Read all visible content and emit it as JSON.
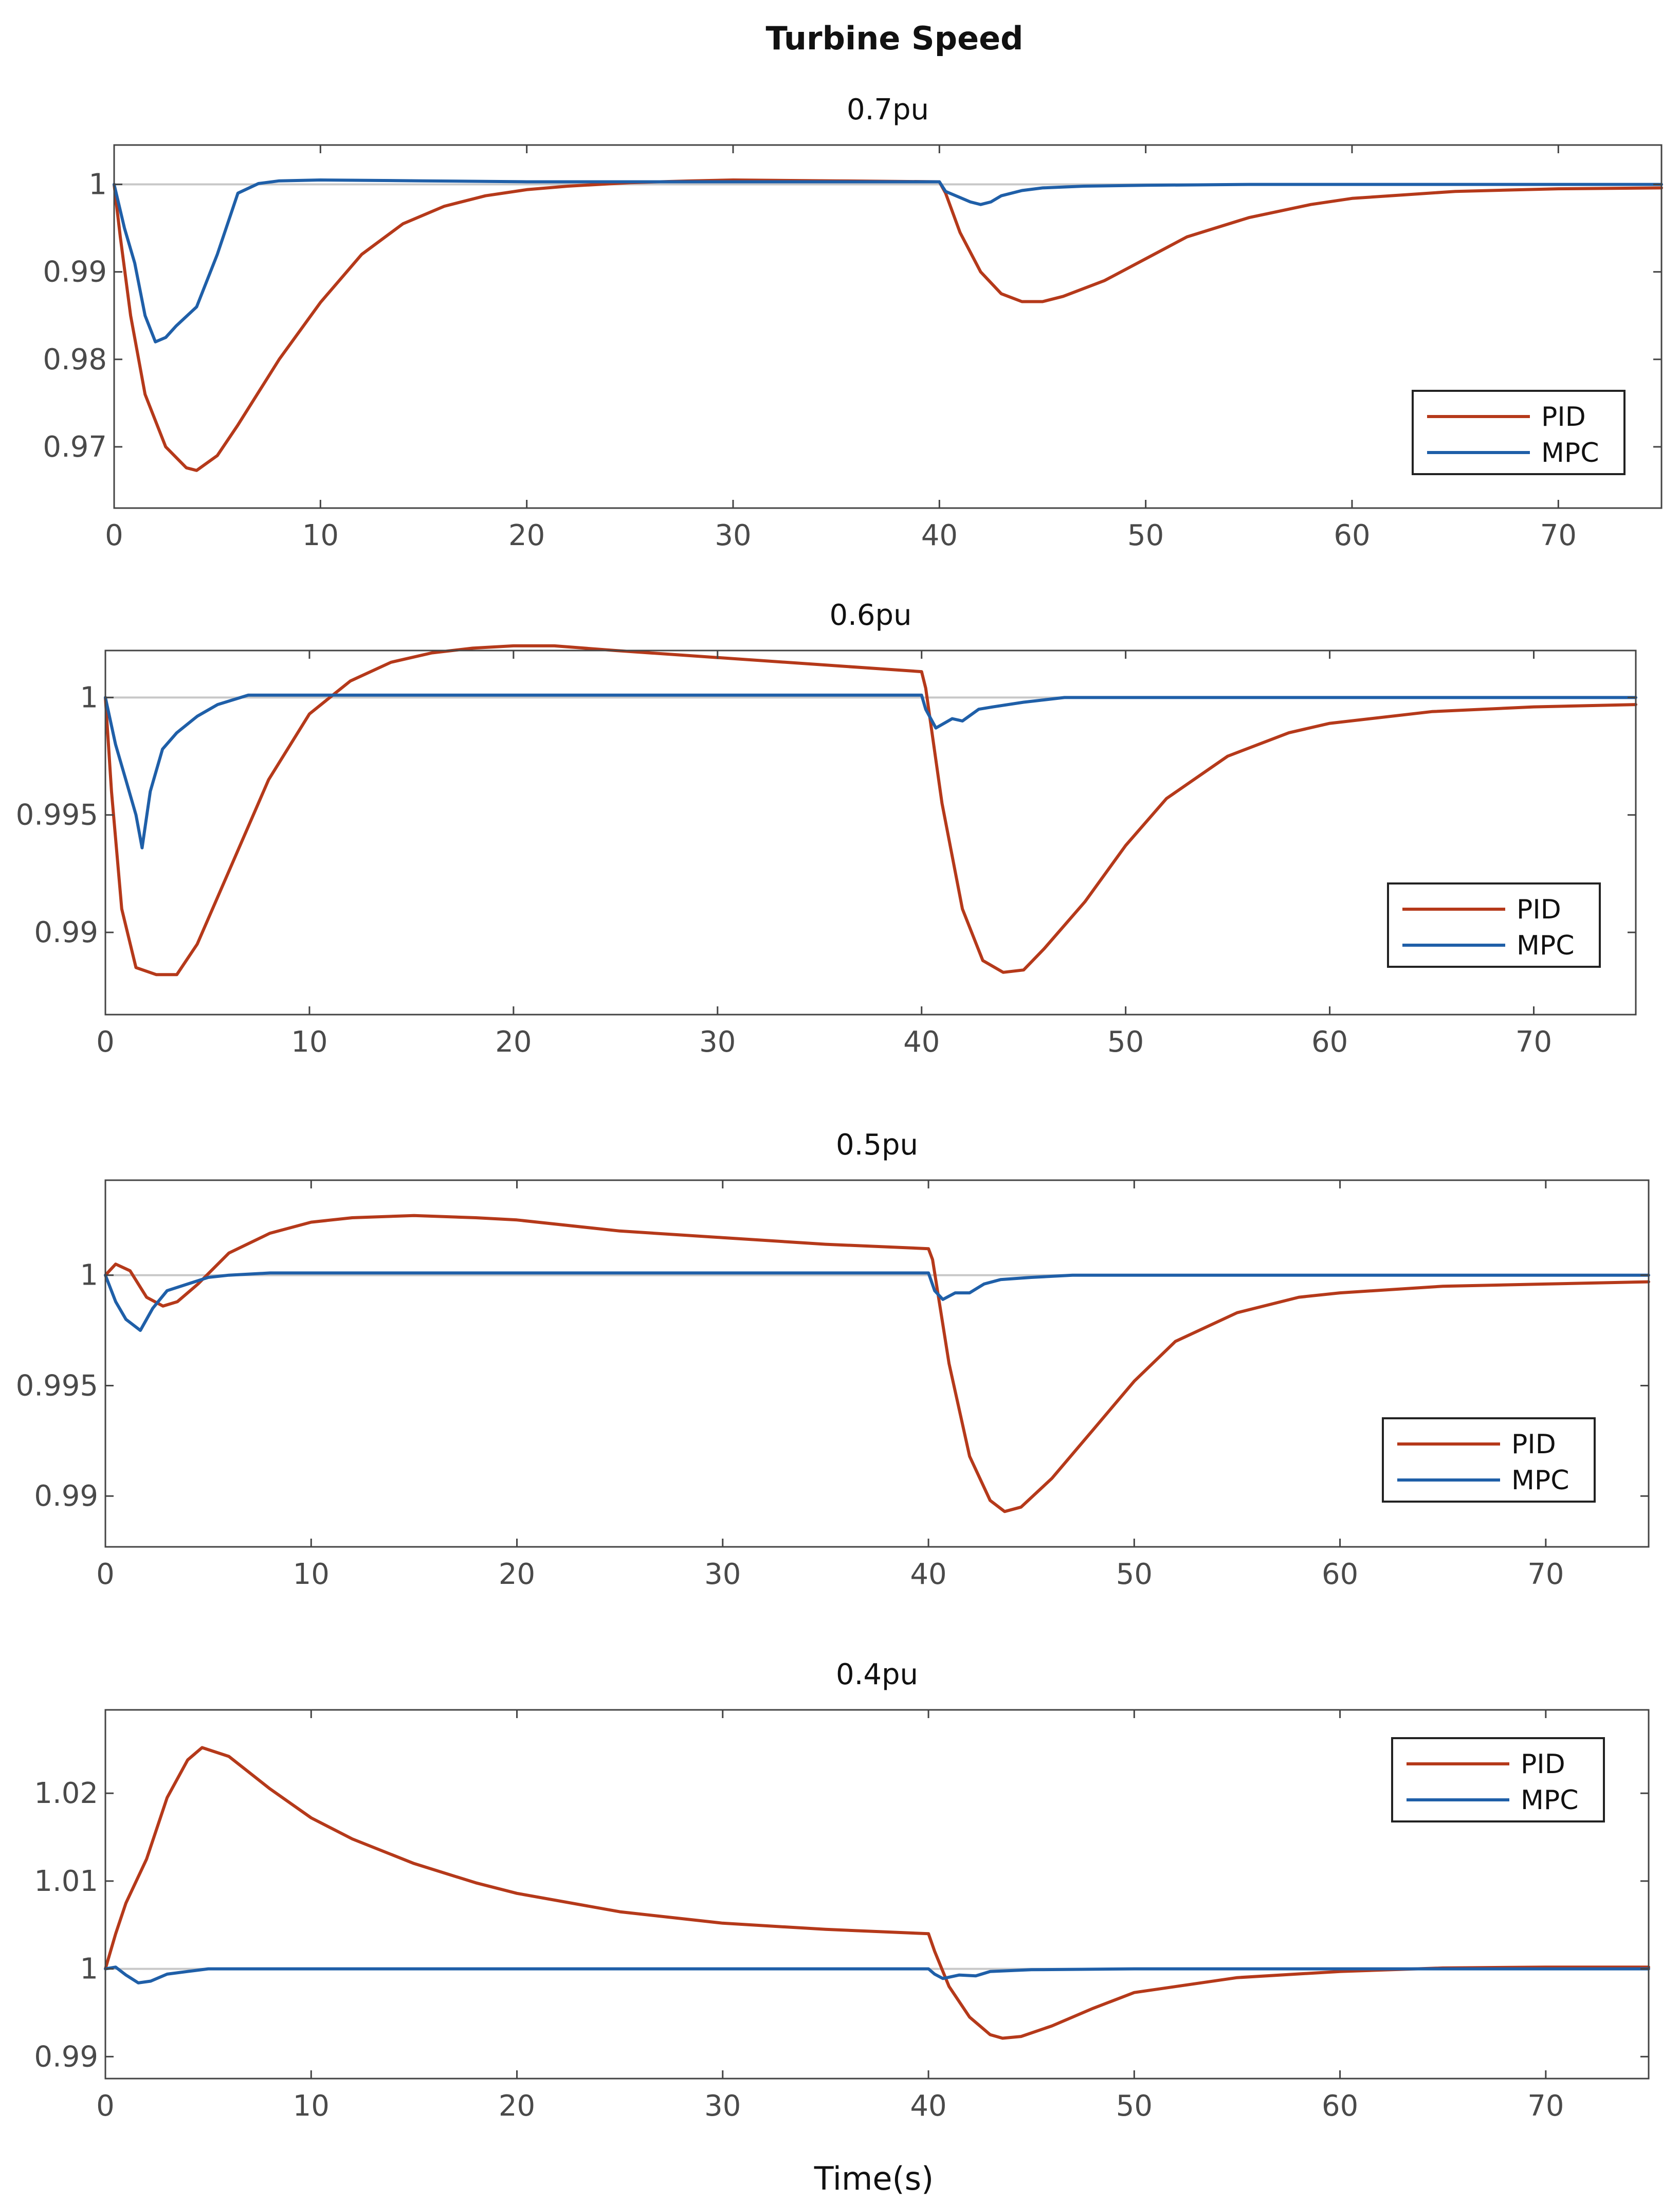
{
  "figure_title": "Turbine Speed",
  "colors": {
    "PID": "#b5391a",
    "MPC": "#1f5fa8",
    "axis": "#444444",
    "ref": "#c8c8c8"
  },
  "chart_data": [
    {
      "type": "line",
      "title": "0.7pu",
      "xlabel": "",
      "ylabel": "",
      "xlim": [
        0,
        75
      ],
      "ylim": [
        0.963,
        1.0045
      ],
      "xticks": [
        0,
        10,
        20,
        30,
        40,
        50,
        60,
        70
      ],
      "yticks": [
        0.97,
        0.98,
        0.99,
        1
      ],
      "ytick_labels": [
        "0.97",
        "0.98",
        "0.99",
        "1"
      ],
      "legend": [
        "PID",
        "MPC"
      ],
      "legend_position": "right",
      "reference": 1,
      "series": [
        {
          "name": "PID",
          "x": [
            0,
            0.3,
            0.8,
            1.5,
            2.5,
            3.5,
            4,
            5,
            6,
            8,
            10,
            12,
            14,
            16,
            18,
            20,
            22,
            25,
            28,
            30,
            35,
            40,
            40.3,
            41,
            42,
            43,
            44,
            45,
            46,
            48,
            50,
            52,
            55,
            58,
            60,
            65,
            70,
            75
          ],
          "y": [
            1.0,
            0.994,
            0.985,
            0.976,
            0.97,
            0.9676,
            0.9673,
            0.969,
            0.9725,
            0.98,
            0.9865,
            0.992,
            0.9955,
            0.9975,
            0.9987,
            0.9994,
            0.9998,
            1.0002,
            1.0004,
            1.0005,
            1.0004,
            1.0003,
            0.999,
            0.9945,
            0.99,
            0.9875,
            0.9866,
            0.9866,
            0.9872,
            0.989,
            0.9915,
            0.994,
            0.9962,
            0.9977,
            0.9984,
            0.9992,
            0.9995,
            0.9996
          ]
        },
        {
          "name": "MPC",
          "x": [
            0,
            0.5,
            1,
            1.5,
            2,
            2.5,
            3,
            4,
            5,
            6,
            7,
            8,
            10,
            15,
            20,
            30,
            40,
            40.3,
            41,
            41.5,
            42,
            42.5,
            43,
            44,
            45,
            47,
            50,
            55,
            60,
            75
          ],
          "y": [
            1.0,
            0.995,
            0.991,
            0.985,
            0.982,
            0.9825,
            0.9838,
            0.986,
            0.992,
            0.999,
            1.0001,
            1.0004,
            1.0005,
            1.0004,
            1.0003,
            1.0003,
            1.0003,
            0.9992,
            0.9985,
            0.998,
            0.9977,
            0.998,
            0.9987,
            0.9993,
            0.9996,
            0.9998,
            0.9999,
            1.0,
            1.0,
            1.0
          ]
        }
      ]
    },
    {
      "type": "line",
      "title": "0.6pu",
      "xlabel": "",
      "ylabel": "",
      "xlim": [
        0,
        75
      ],
      "ylim": [
        0.9865,
        1.002
      ],
      "xticks": [
        0,
        10,
        20,
        30,
        40,
        50,
        60,
        70
      ],
      "yticks": [
        0.99,
        0.995,
        1
      ],
      "ytick_labels": [
        "0.99",
        "0.995",
        "1"
      ],
      "legend": [
        "PID",
        "MPC"
      ],
      "legend_position": "right",
      "reference": 1,
      "series": [
        {
          "name": "PID",
          "x": [
            0,
            0.3,
            0.8,
            1.5,
            2.5,
            3.5,
            4.5,
            6,
            8,
            10,
            12,
            14,
            16,
            18,
            20,
            22,
            25,
            30,
            35,
            40,
            40.2,
            41,
            42,
            43,
            44,
            45,
            46,
            48,
            50,
            52,
            55,
            58,
            60,
            65,
            70,
            75
          ],
          "y": [
            1.0,
            0.996,
            0.991,
            0.9885,
            0.9882,
            0.9882,
            0.9895,
            0.9925,
            0.9965,
            0.9993,
            1.0007,
            1.0015,
            1.0019,
            1.0021,
            1.0022,
            1.0022,
            1.002,
            1.0017,
            1.0014,
            1.0011,
            1.0004,
            0.9955,
            0.991,
            0.9888,
            0.9883,
            0.9884,
            0.9893,
            0.9913,
            0.9937,
            0.9957,
            0.9975,
            0.9985,
            0.9989,
            0.9994,
            0.9996,
            0.9997
          ]
        },
        {
          "name": "MPC",
          "x": [
            0,
            0.5,
            1,
            1.5,
            1.8,
            2.2,
            2.8,
            3.5,
            4.5,
            5.5,
            7,
            9,
            10,
            20,
            30,
            40,
            40.2,
            40.7,
            41.5,
            42,
            42.8,
            43.5,
            45,
            47,
            50,
            75
          ],
          "y": [
            1.0,
            0.998,
            0.9965,
            0.995,
            0.9936,
            0.996,
            0.9978,
            0.9985,
            0.9992,
            0.9997,
            1.0001,
            1.0001,
            1.0001,
            1.0001,
            1.0001,
            1.0001,
            0.9995,
            0.9987,
            0.9991,
            0.999,
            0.9995,
            0.9996,
            0.9998,
            1.0,
            1.0,
            1.0
          ]
        }
      ]
    },
    {
      "type": "line",
      "title": "0.5pu",
      "xlabel": "",
      "ylabel": "",
      "xlim": [
        0,
        75
      ],
      "ylim": [
        0.9877,
        1.0043
      ],
      "xticks": [
        0,
        10,
        20,
        30,
        40,
        50,
        60,
        70
      ],
      "yticks": [
        0.99,
        0.995,
        1
      ],
      "ytick_labels": [
        "0.99",
        "0.995",
        "1"
      ],
      "legend": [
        "PID",
        "MPC"
      ],
      "legend_position": "right",
      "reference": 1,
      "series": [
        {
          "name": "PID",
          "x": [
            0,
            0.5,
            1.2,
            2,
            2.8,
            3.5,
            4.5,
            6,
            8,
            10,
            12,
            15,
            18,
            20,
            25,
            30,
            35,
            40,
            40.2,
            41,
            42,
            43,
            43.7,
            44.5,
            46,
            48,
            50,
            52,
            55,
            58,
            60,
            65,
            70,
            75
          ],
          "y": [
            1.0,
            1.0005,
            1.0002,
            0.999,
            0.9986,
            0.9988,
            0.9996,
            1.001,
            1.0019,
            1.0024,
            1.0026,
            1.0027,
            1.0026,
            1.0025,
            1.002,
            1.0017,
            1.0014,
            1.0012,
            1.0007,
            0.996,
            0.9918,
            0.9898,
            0.9893,
            0.9895,
            0.9908,
            0.993,
            0.9952,
            0.997,
            0.9983,
            0.999,
            0.9992,
            0.9995,
            0.9996,
            0.9997
          ]
        },
        {
          "name": "MPC",
          "x": [
            0,
            0.5,
            1,
            1.7,
            2.3,
            3,
            4,
            5,
            6,
            8,
            10,
            20,
            30,
            40,
            40.3,
            40.7,
            41.3,
            42,
            42.7,
            43.5,
            45,
            47,
            50,
            75
          ],
          "y": [
            1.0,
            0.9988,
            0.998,
            0.9975,
            0.9985,
            0.9993,
            0.9996,
            0.9999,
            1.0,
            1.0001,
            1.0001,
            1.0001,
            1.0001,
            1.0001,
            0.9993,
            0.9989,
            0.9992,
            0.9992,
            0.9996,
            0.9998,
            0.9999,
            1.0,
            1.0,
            1.0
          ]
        }
      ]
    },
    {
      "type": "line",
      "title": "0.4pu",
      "xlabel": "Time(s)",
      "ylabel": "",
      "xlim": [
        0,
        75
      ],
      "ylim": [
        0.9875,
        1.0295
      ],
      "xticks": [
        0,
        10,
        20,
        30,
        40,
        50,
        60,
        70
      ],
      "yticks": [
        0.99,
        1,
        1.01,
        1.02
      ],
      "ytick_labels": [
        "0.99",
        "1",
        "1.01",
        "1.02"
      ],
      "legend": [
        "PID",
        "MPC"
      ],
      "legend_position": "top-right",
      "reference": 1,
      "series": [
        {
          "name": "PID",
          "x": [
            0,
            0.5,
            1,
            2,
            3,
            4,
            4.7,
            6,
            8,
            10,
            12,
            15,
            18,
            20,
            25,
            30,
            35,
            40,
            40.3,
            41,
            42,
            43,
            43.6,
            44.5,
            46,
            48,
            50,
            55,
            60,
            65,
            70,
            75
          ],
          "y": [
            1.0,
            1.004,
            1.0075,
            1.0125,
            1.0195,
            1.0238,
            1.0252,
            1.0242,
            1.0205,
            1.0172,
            1.0148,
            1.012,
            1.0098,
            1.0086,
            1.0065,
            1.0052,
            1.0045,
            1.004,
            1.002,
            0.998,
            0.9945,
            0.9925,
            0.9921,
            0.9923,
            0.9935,
            0.9955,
            0.9973,
            0.999,
            0.9997,
            1.0001,
            1.0002,
            1.0002
          ]
        },
        {
          "name": "MPC",
          "x": [
            0,
            0.5,
            1,
            1.6,
            2.2,
            3,
            4,
            5,
            7,
            10,
            20,
            30,
            40,
            40.3,
            40.7,
            41.5,
            42.3,
            43,
            45,
            50,
            75
          ],
          "y": [
            1.0,
            1.0002,
            0.9993,
            0.9984,
            0.9986,
            0.9994,
            0.9997,
            1.0,
            1.0,
            1.0,
            1.0,
            1.0,
            1.0,
            0.9994,
            0.9989,
            0.9993,
            0.9992,
            0.9997,
            0.9999,
            1.0,
            1.0
          ]
        }
      ]
    }
  ]
}
